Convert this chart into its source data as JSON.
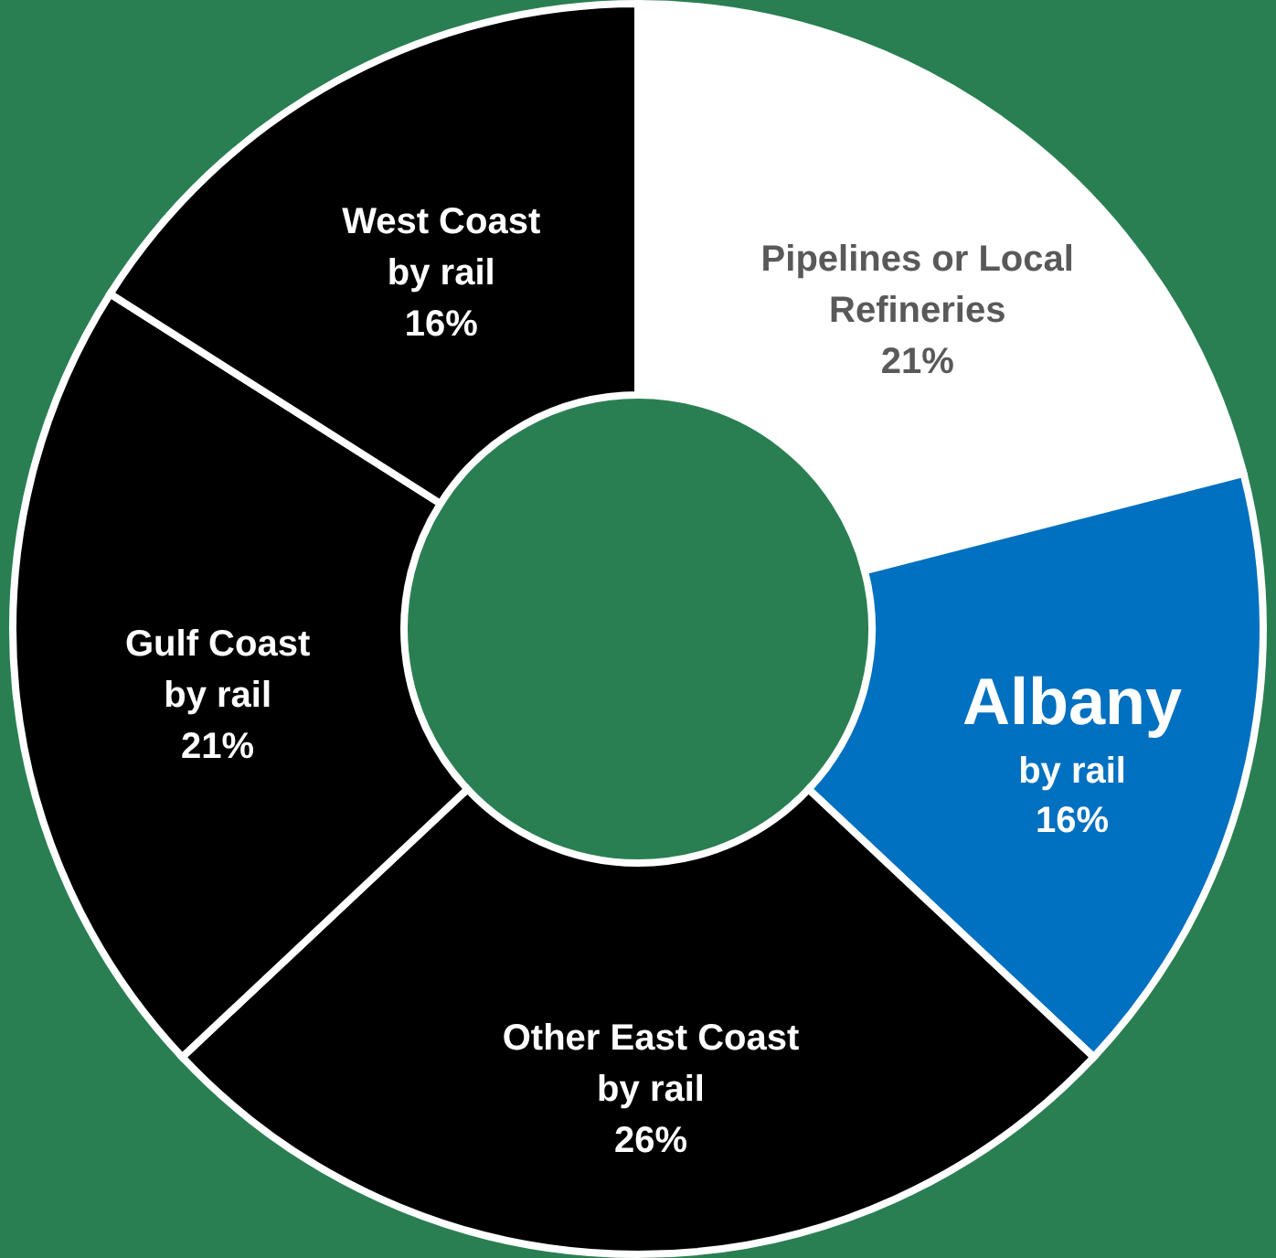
{
  "chart_data": {
    "type": "donut",
    "categories": [
      "Pipelines or Local\nRefineries",
      "Albany\nby rail",
      "Other East Coast\nby rail",
      "Gulf Coast\nby rail",
      "West Coast\nby rail"
    ],
    "values": [
      21,
      16,
      26,
      21,
      16
    ],
    "value_labels": [
      "21%",
      "16%",
      "26%",
      "21%",
      "16%"
    ],
    "colors": [
      "#ffffff",
      "#0070c0",
      "#000000",
      "#000000",
      "#000000"
    ]
  }
}
